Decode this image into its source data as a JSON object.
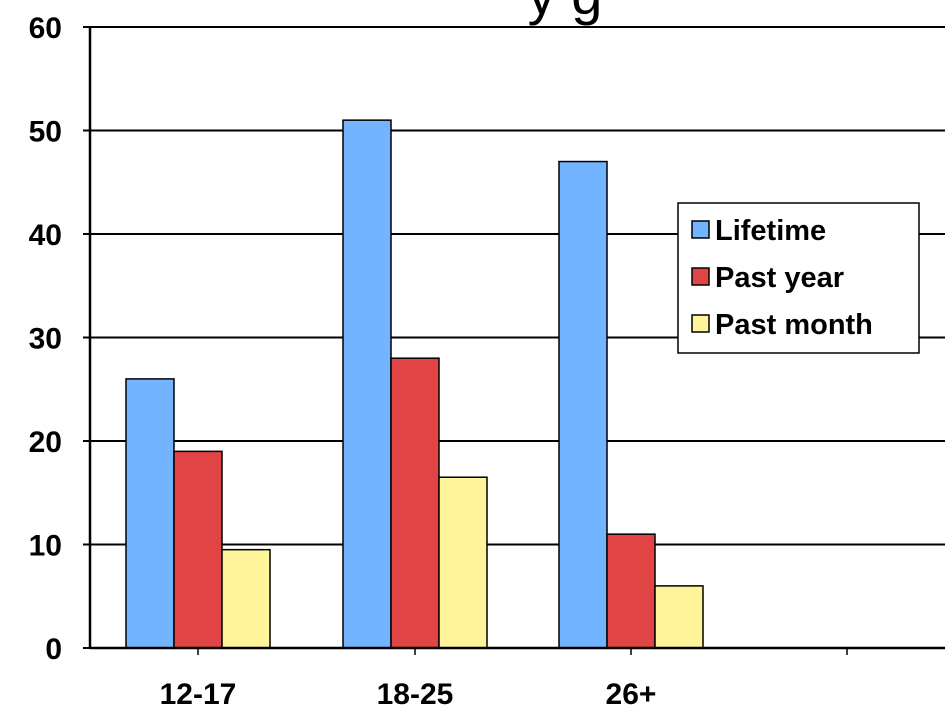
{
  "chart_data": {
    "type": "bar",
    "title_fragment": "y g",
    "categories": [
      "12-17",
      "18-25",
      "26+"
    ],
    "series": [
      {
        "name": "Lifetime",
        "values": [
          26,
          51,
          47
        ],
        "color": "#72b4ff"
      },
      {
        "name": "Past year",
        "values": [
          19,
          28,
          11
        ],
        "color": "#e04444"
      },
      {
        "name": "Past month",
        "values": [
          9.5,
          16.5,
          6
        ],
        "color": "#fff49a"
      }
    ],
    "ylim": [
      0,
      60
    ],
    "yticks": [
      "0",
      "10",
      "20",
      "30",
      "40",
      "50",
      "60"
    ],
    "grid": true,
    "legend_position": "right"
  }
}
